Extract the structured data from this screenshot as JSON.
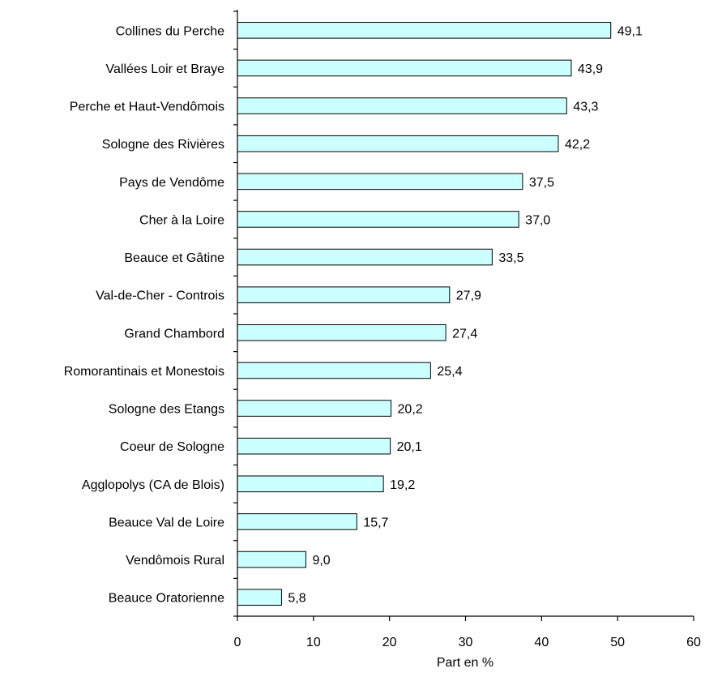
{
  "chart_data": {
    "type": "bar",
    "orientation": "horizontal",
    "categories": [
      "Collines du Perche",
      "Vallées Loir et Braye",
      "Perche et Haut-Vendômois",
      "Sologne des Rivières",
      "Pays de Vendôme",
      "Cher à la Loire",
      "Beauce et Gâtine",
      "Val-de-Cher - Controis",
      "Grand Chambord",
      "Romorantinais et Monestois",
      "Sologne des Etangs",
      "Coeur de Sologne",
      "Agglopolys (CA de Blois)",
      "Beauce Val de Loire",
      "Vendômois Rural",
      "Beauce Oratorienne"
    ],
    "values": [
      49.1,
      43.9,
      43.3,
      42.2,
      37.5,
      37.0,
      33.5,
      27.9,
      27.4,
      25.4,
      20.2,
      20.1,
      19.2,
      15.7,
      9.0,
      5.8
    ],
    "value_labels": [
      "49,1",
      "43,9",
      "43,3",
      "42,2",
      "37,5",
      "37,0",
      "33,5",
      "27,9",
      "27,4",
      "25,4",
      "20,2",
      "20,1",
      "19,2",
      "15,7",
      "9,0",
      "5,8"
    ],
    "xlabel": "Part en %",
    "xlim": [
      0,
      60
    ],
    "xticks": [
      0,
      10,
      20,
      30,
      40,
      50,
      60
    ],
    "grid": false,
    "legend": "none",
    "bar_color": "#ccffff",
    "bar_edge_color": "#000000"
  }
}
